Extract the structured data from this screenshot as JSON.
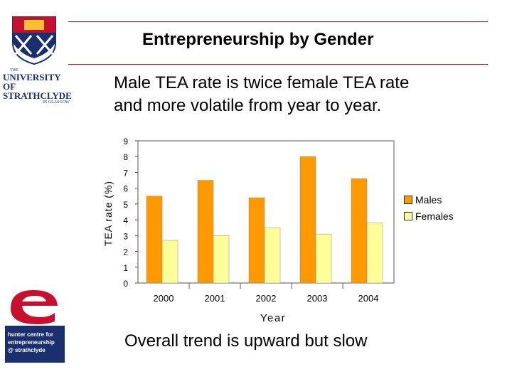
{
  "slide": {
    "title": "Entrepreneurship by Gender",
    "subtitle_line1": "Male TEA rate is twice female TEA rate",
    "subtitle_line2": "and more volatile from year to year.",
    "footer": "Overall trend is upward but slow"
  },
  "logos": {
    "university_line1": "THE",
    "university_line2": "UNIVERSITY OF",
    "university_line3": "STRATHCLYDE",
    "university_line4": "IN GLASGOW",
    "hunter_line1": "hunter centre for",
    "hunter_line2": "entrepreneurship",
    "hunter_line3": "@ strathclyde"
  },
  "colors": {
    "accent_rule": "#c8102e",
    "males": "#ff9900",
    "females": "#ffff99",
    "plot_bg": "#ffffff",
    "hunter_bg": "#1a2f6e"
  },
  "chart_data": {
    "type": "bar",
    "categories": [
      "2000",
      "2001",
      "2002",
      "2003",
      "2004"
    ],
    "series": [
      {
        "name": "Males",
        "values": [
          5.5,
          6.5,
          5.4,
          8.0,
          6.6
        ]
      },
      {
        "name": "Females",
        "values": [
          2.7,
          3.0,
          3.5,
          3.1,
          3.8
        ]
      }
    ],
    "xlabel": "Year",
    "ylabel": "TEA rate (%)",
    "ylim": [
      0,
      9
    ],
    "yticks": [
      "0",
      "1",
      "2",
      "3",
      "4",
      "5",
      "6",
      "7",
      "8",
      "9"
    ],
    "grid": false,
    "legend_position": "right"
  }
}
